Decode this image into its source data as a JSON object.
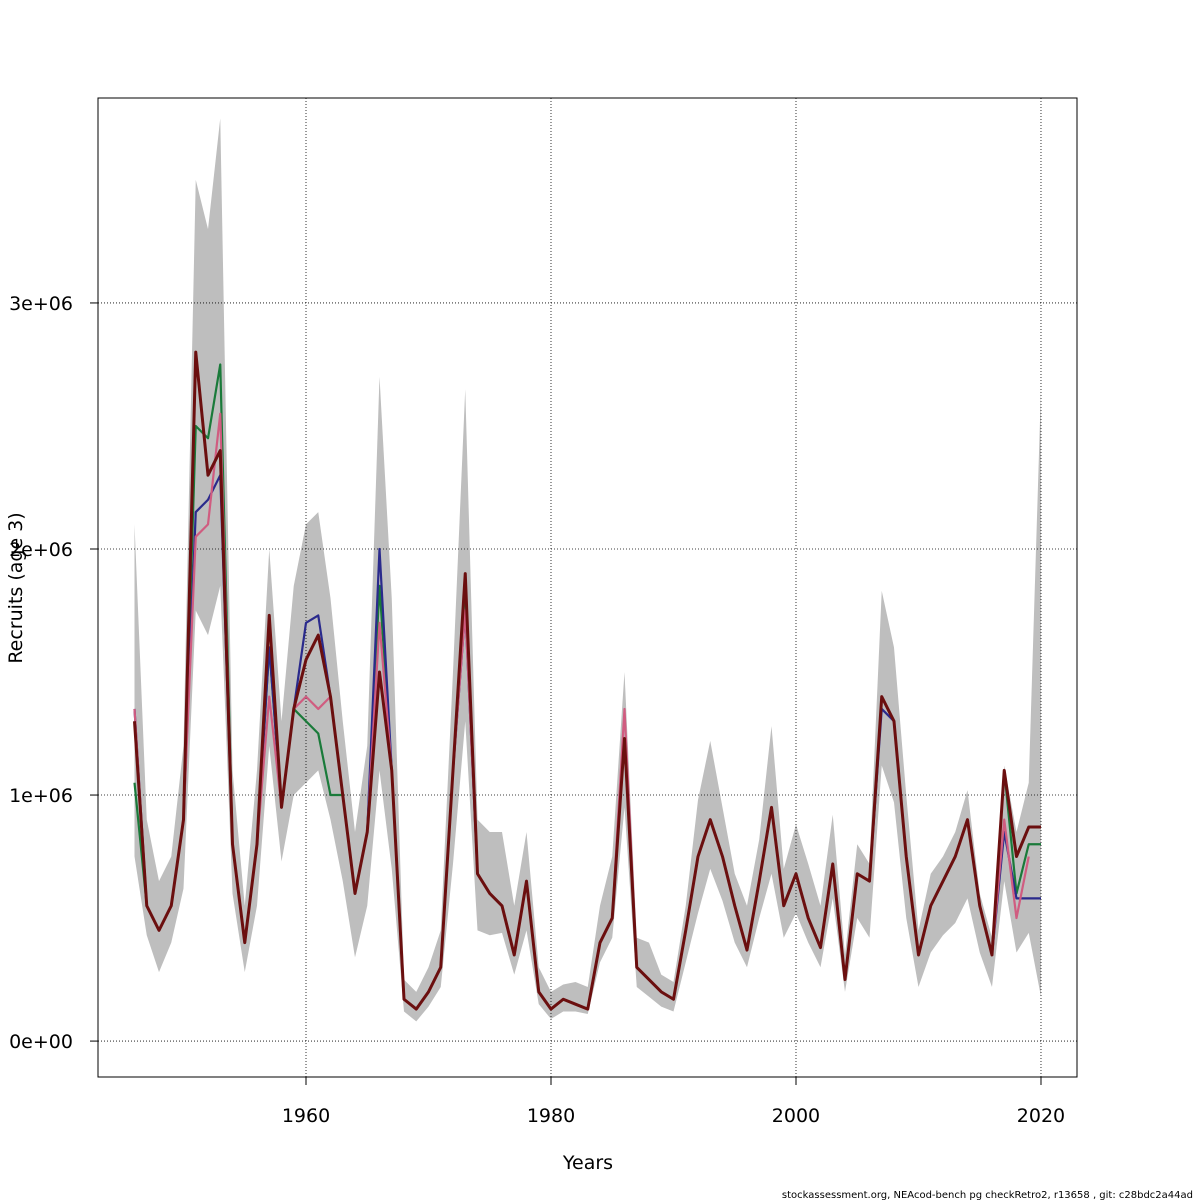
{
  "chart_data": {
    "type": "line",
    "x_label": "Years",
    "y_label": "Recruits (age 3)",
    "footer": "stockassessment.org, NEAcod-bench pg checkRetro2, r13658 , git: c28bdc2a44ad",
    "x": [
      1946,
      1947,
      1948,
      1949,
      1950,
      1951,
      1952,
      1953,
      1954,
      1955,
      1956,
      1957,
      1958,
      1959,
      1960,
      1961,
      1962,
      1963,
      1964,
      1965,
      1966,
      1967,
      1968,
      1969,
      1970,
      1971,
      1972,
      1973,
      1974,
      1975,
      1976,
      1977,
      1978,
      1979,
      1980,
      1981,
      1982,
      1983,
      1984,
      1985,
      1986,
      1987,
      1988,
      1989,
      1990,
      1991,
      1992,
      1993,
      1994,
      1995,
      1996,
      1997,
      1998,
      1999,
      2000,
      2001,
      2002,
      2003,
      2004,
      2005,
      2006,
      2007,
      2008,
      2009,
      2010,
      2011,
      2012,
      2013,
      2014,
      2015,
      2016,
      2017,
      2018,
      2019,
      2020
    ],
    "xlim": [
      1943.02,
      2022.94
    ],
    "xticks": [
      1960,
      1980,
      2000,
      2020
    ],
    "ylim": [
      -146000,
      3833000
    ],
    "yticks": [
      {
        "value": 0,
        "label": "0e+00"
      },
      {
        "value": 1000000,
        "label": "1e+06"
      },
      {
        "value": 2000000,
        "label": "2e+06"
      },
      {
        "value": 3000000,
        "label": "3e+06"
      }
    ],
    "grid": true,
    "band": {
      "color": "#bebebe",
      "upper": [
        2100000,
        900000,
        650000,
        750000,
        1200000,
        3500000,
        3300000,
        3750000,
        1100000,
        550000,
        1100000,
        2000000,
        1300000,
        1850000,
        2100000,
        2150000,
        1800000,
        1300000,
        850000,
        1200000,
        2700000,
        1800000,
        250000,
        200000,
        300000,
        450000,
        1500000,
        2650000,
        900000,
        850000,
        850000,
        550000,
        850000,
        300000,
        200000,
        230000,
        240000,
        220000,
        550000,
        750000,
        1500000,
        420000,
        400000,
        270000,
        240000,
        550000,
        980000,
        1220000,
        950000,
        680000,
        550000,
        820000,
        1280000,
        700000,
        880000,
        720000,
        550000,
        920000,
        350000,
        800000,
        720000,
        1830000,
        1600000,
        1000000,
        450000,
        680000,
        750000,
        850000,
        1020000,
        600000,
        420000,
        1120000,
        850000,
        1050000,
        2650000
      ],
      "lower": [
        750000,
        430000,
        280000,
        400000,
        620000,
        1750000,
        1650000,
        1850000,
        600000,
        280000,
        550000,
        1200000,
        730000,
        1000000,
        1050000,
        1100000,
        900000,
        650000,
        340000,
        550000,
        1100000,
        700000,
        120000,
        80000,
        140000,
        220000,
        720000,
        1300000,
        450000,
        430000,
        440000,
        270000,
        450000,
        150000,
        90000,
        120000,
        120000,
        110000,
        320000,
        420000,
        950000,
        220000,
        180000,
        140000,
        120000,
        320000,
        520000,
        700000,
        570000,
        400000,
        300000,
        500000,
        680000,
        420000,
        520000,
        400000,
        300000,
        580000,
        200000,
        500000,
        420000,
        1120000,
        970000,
        500000,
        220000,
        360000,
        430000,
        480000,
        580000,
        360000,
        220000,
        650000,
        360000,
        440000,
        180000
      ]
    },
    "series": [
      {
        "color": "#1a7a3a",
        "values": [
          1050000,
          550000,
          450000,
          550000,
          900000,
          2500000,
          2450000,
          2750000,
          800000,
          400000,
          800000,
          1600000,
          950000,
          1350000,
          1300000,
          1250000,
          1000000,
          1000000,
          600000,
          850000,
          1850000,
          1100000,
          170000,
          130000,
          200000,
          300000,
          1100000,
          1850000,
          680000,
          600000,
          550000,
          350000,
          650000,
          200000,
          130000,
          170000,
          150000,
          130000,
          400000,
          500000,
          1230000,
          300000,
          250000,
          200000,
          170000,
          450000,
          750000,
          900000,
          750000,
          550000,
          370000,
          650000,
          950000,
          550000,
          680000,
          500000,
          380000,
          720000,
          250000,
          680000,
          650000,
          1400000,
          1300000,
          750000,
          350000,
          550000,
          650000,
          750000,
          900000,
          550000,
          350000,
          1100000,
          600000,
          800000,
          800000
        ]
      },
      {
        "color": "#2a2a8c",
        "values": [
          1350000,
          550000,
          450000,
          550000,
          900000,
          2150000,
          2200000,
          2300000,
          800000,
          400000,
          800000,
          1600000,
          950000,
          1350000,
          1700000,
          1730000,
          1400000,
          1000000,
          600000,
          850000,
          2000000,
          1100000,
          170000,
          130000,
          200000,
          300000,
          1100000,
          1750000,
          680000,
          600000,
          550000,
          350000,
          650000,
          200000,
          130000,
          170000,
          150000,
          130000,
          400000,
          500000,
          1230000,
          300000,
          250000,
          200000,
          170000,
          450000,
          750000,
          900000,
          750000,
          550000,
          370000,
          650000,
          950000,
          550000,
          680000,
          500000,
          380000,
          720000,
          250000,
          680000,
          650000,
          1350000,
          1300000,
          750000,
          350000,
          550000,
          650000,
          750000,
          900000,
          550000,
          350000,
          850000,
          580000,
          580000,
          580000
        ]
      },
      {
        "color": "#d05c80",
        "values": [
          1350000,
          550000,
          450000,
          550000,
          900000,
          2050000,
          2100000,
          2550000,
          800000,
          400000,
          800000,
          1400000,
          950000,
          1350000,
          1400000,
          1350000,
          1400000,
          1000000,
          600000,
          850000,
          1700000,
          1100000,
          170000,
          130000,
          200000,
          300000,
          1100000,
          1750000,
          680000,
          600000,
          550000,
          350000,
          650000,
          200000,
          130000,
          170000,
          150000,
          130000,
          400000,
          500000,
          1350000,
          300000,
          250000,
          200000,
          170000,
          450000,
          750000,
          900000,
          750000,
          550000,
          370000,
          650000,
          950000,
          550000,
          680000,
          500000,
          380000,
          720000,
          250000,
          680000,
          650000,
          1400000,
          1300000,
          750000,
          350000,
          550000,
          650000,
          750000,
          900000,
          550000,
          350000,
          900000,
          500000,
          750000,
          null
        ]
      },
      {
        "color": "#6b0f0f",
        "values": [
          1300000,
          550000,
          450000,
          550000,
          900000,
          2800000,
          2300000,
          2400000,
          800000,
          400000,
          800000,
          1730000,
          950000,
          1350000,
          1550000,
          1650000,
          1400000,
          1000000,
          600000,
          850000,
          1500000,
          1100000,
          170000,
          130000,
          200000,
          300000,
          1100000,
          1900000,
          680000,
          600000,
          550000,
          350000,
          650000,
          200000,
          130000,
          170000,
          150000,
          130000,
          400000,
          500000,
          1230000,
          300000,
          250000,
          200000,
          170000,
          450000,
          750000,
          900000,
          750000,
          550000,
          370000,
          650000,
          950000,
          550000,
          680000,
          500000,
          380000,
          720000,
          250000,
          680000,
          650000,
          1400000,
          1300000,
          750000,
          350000,
          550000,
          650000,
          750000,
          900000,
          550000,
          350000,
          1100000,
          750000,
          870000,
          870000
        ]
      }
    ]
  }
}
